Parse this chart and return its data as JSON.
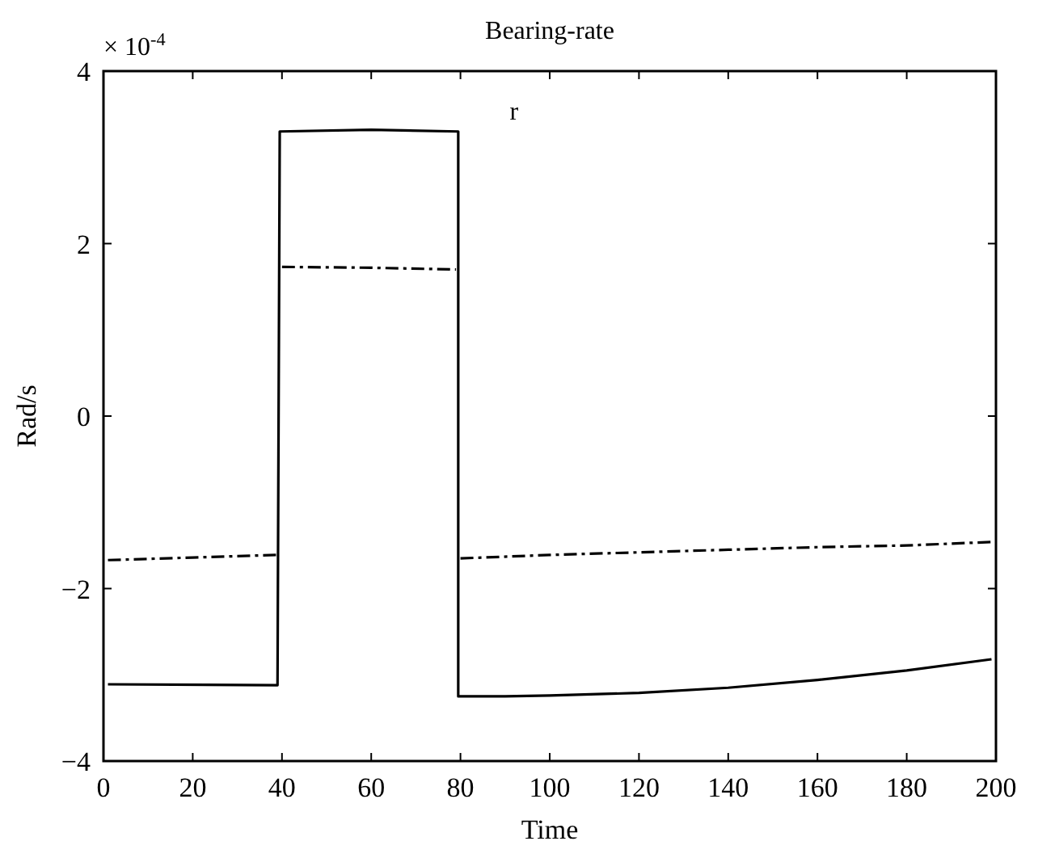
{
  "chart_data": {
    "type": "line",
    "title": "Bearing-rate",
    "xlabel": "Time",
    "ylabel": "Rad/s",
    "xlim": [
      0,
      200
    ],
    "xticks": [
      0,
      20,
      40,
      60,
      80,
      100,
      120,
      140,
      160,
      180,
      200
    ],
    "ylim": [
      -4,
      4
    ],
    "yticks": [
      -4,
      -2,
      0,
      2,
      4
    ],
    "grid": false,
    "annotations": [
      "× 10$^{-4}$",
      "r"
    ],
    "series": [
      {
        "color": "#000000",
        "line_style": "solid",
        "x": [
          1,
          39,
          39.5,
          60,
          79.5,
          79.5,
          90,
          100,
          120,
          140,
          160,
          180,
          199
        ],
        "values": [
          -3.11,
          -3.12,
          3.3,
          3.32,
          3.3,
          -3.25,
          -3.25,
          -3.24,
          -3.21,
          -3.15,
          -3.06,
          -2.95,
          -2.82
        ]
      },
      {
        "color": "#000000",
        "line_style": "dashdot",
        "x": [
          1,
          20,
          39,
          39.5,
          40,
          60,
          79,
          79.5,
          80,
          100,
          120,
          140,
          160,
          180,
          199
        ],
        "values": [
          -1.67,
          -1.64,
          -1.61,
          null,
          1.73,
          1.72,
          1.7,
          null,
          -1.65,
          -1.61,
          -1.58,
          -1.55,
          -1.52,
          -1.5,
          -1.46
        ]
      }
    ]
  }
}
